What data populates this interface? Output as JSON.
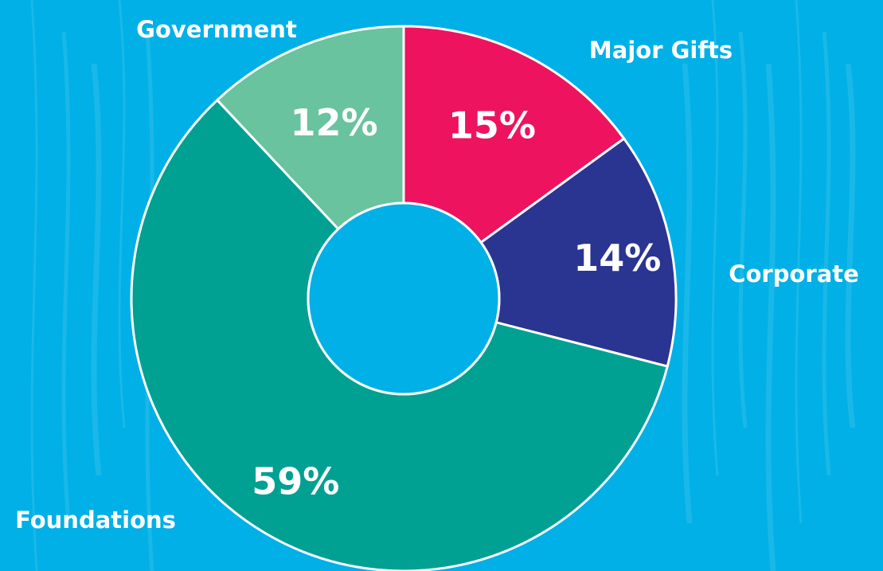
{
  "chart_data": {
    "type": "pie",
    "donut": true,
    "categories": [
      "Major Gifts",
      "Corporate",
      "Foundations",
      "Government"
    ],
    "values": [
      15,
      14,
      59,
      12
    ],
    "value_labels": [
      "15%",
      "14%",
      "59%",
      "12%"
    ],
    "colors": [
      "#ee135e",
      "#2a3591",
      "#00a192",
      "#68c39e"
    ],
    "start": "12 o'clock, clockwise",
    "legend": "none"
  },
  "colors": {
    "background": "#00b0e6",
    "center_hole": "#00b0e6",
    "slice_border": "#ffffff",
    "text": "#ffffff"
  }
}
